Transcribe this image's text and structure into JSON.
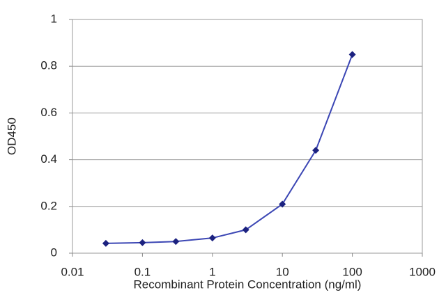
{
  "chart_data": {
    "type": "line",
    "x_label": "Recombinant Protein Concentration (ng/ml)",
    "y_label": "OD450",
    "x": [
      0.03,
      0.1,
      0.3,
      1,
      3,
      10,
      30,
      100
    ],
    "values": [
      0.042,
      0.045,
      0.05,
      0.065,
      0.1,
      0.21,
      0.44,
      0.85
    ],
    "color": "#3b46b4",
    "marker_color": "#1c2280",
    "xscale": "log",
    "xlim": [
      0.01,
      1000
    ],
    "xticks": [
      0.01,
      0.1,
      1,
      10,
      100,
      1000
    ],
    "ylim": [
      0,
      1
    ],
    "yticks": [
      0,
      0.2,
      0.4,
      0.6,
      0.8,
      1
    ],
    "grid": true
  }
}
